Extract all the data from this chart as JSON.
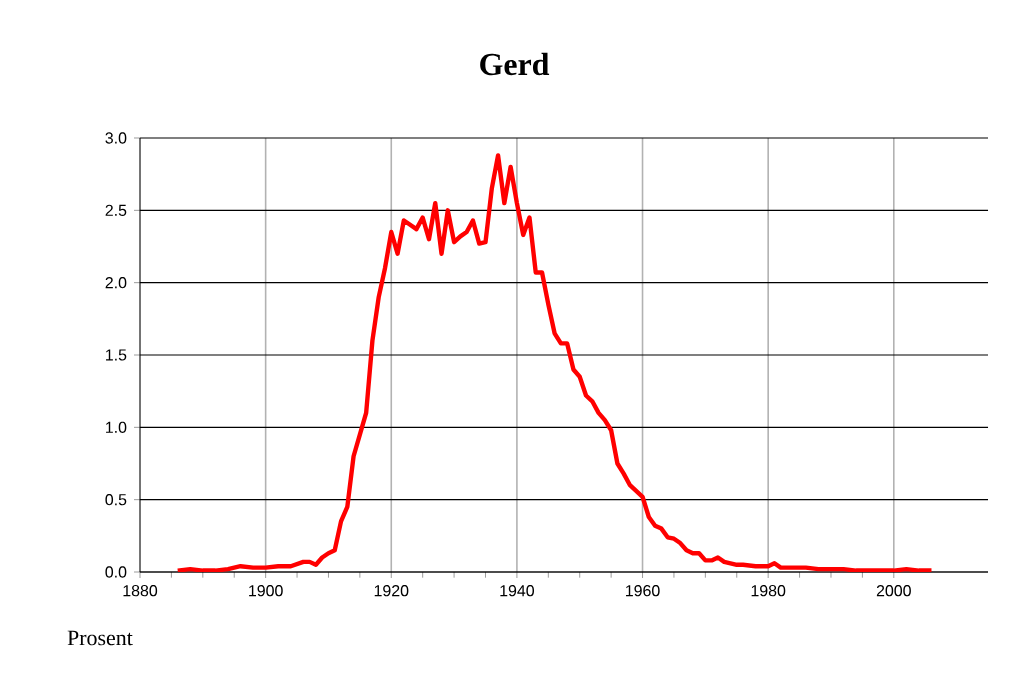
{
  "chart_data": {
    "type": "line",
    "title": "Gerd",
    "ylabel": "Prosent",
    "x": [
      1886,
      1888,
      1890,
      1892,
      1894,
      1896,
      1898,
      1900,
      1902,
      1904,
      1906,
      1907,
      1908,
      1909,
      1910,
      1911,
      1912,
      1913,
      1914,
      1915,
      1916,
      1917,
      1918,
      1919,
      1920,
      1921,
      1922,
      1923,
      1924,
      1925,
      1926,
      1927,
      1928,
      1929,
      1930,
      1931,
      1932,
      1933,
      1934,
      1935,
      1936,
      1937,
      1938,
      1939,
      1940,
      1941,
      1942,
      1943,
      1944,
      1945,
      1946,
      1947,
      1948,
      1949,
      1950,
      1951,
      1952,
      1953,
      1954,
      1955,
      1956,
      1957,
      1958,
      1959,
      1960,
      1961,
      1962,
      1963,
      1964,
      1965,
      1966,
      1967,
      1968,
      1969,
      1970,
      1971,
      1972,
      1973,
      1974,
      1975,
      1976,
      1978,
      1980,
      1981,
      1982,
      1984,
      1986,
      1988,
      1990,
      1992,
      1994,
      1996,
      1998,
      2000,
      2002,
      2004,
      2006
    ],
    "series": [
      {
        "color": "#ff0000",
        "values": [
          0.01,
          0.02,
          0.01,
          0.01,
          0.02,
          0.04,
          0.03,
          0.03,
          0.04,
          0.04,
          0.07,
          0.07,
          0.05,
          0.1,
          0.13,
          0.15,
          0.35,
          0.45,
          0.8,
          0.95,
          1.1,
          1.6,
          1.9,
          2.1,
          2.35,
          2.2,
          2.43,
          2.4,
          2.37,
          2.45,
          2.3,
          2.55,
          2.2,
          2.5,
          2.28,
          2.32,
          2.35,
          2.43,
          2.27,
          2.28,
          2.65,
          2.88,
          2.55,
          2.8,
          2.55,
          2.33,
          2.45,
          2.07,
          2.07,
          1.85,
          1.65,
          1.58,
          1.58,
          1.4,
          1.35,
          1.22,
          1.18,
          1.1,
          1.05,
          0.98,
          0.75,
          0.68,
          0.6,
          0.56,
          0.52,
          0.38,
          0.32,
          0.3,
          0.24,
          0.23,
          0.2,
          0.15,
          0.13,
          0.13,
          0.08,
          0.08,
          0.1,
          0.07,
          0.06,
          0.05,
          0.05,
          0.04,
          0.04,
          0.06,
          0.03,
          0.03,
          0.03,
          0.02,
          0.02,
          0.02,
          0.01,
          0.01,
          0.01,
          0.01,
          0.02,
          0.01,
          0.01
        ]
      }
    ],
    "xlim": [
      1880,
      2015
    ],
    "ylim": [
      0,
      3
    ],
    "xticks": [
      1880,
      1900,
      1920,
      1940,
      1960,
      1980,
      2000
    ],
    "yticks": [
      {
        "value": 0,
        "label": "0.0"
      },
      {
        "value": 0.5,
        "label": "0.5"
      },
      {
        "value": 1,
        "label": "1.0"
      },
      {
        "value": 1.5,
        "label": "1.5"
      },
      {
        "value": 2,
        "label": "2.0"
      },
      {
        "value": 2.5,
        "label": "2.5"
      },
      {
        "value": 3,
        "label": "3.0"
      }
    ],
    "grid": true,
    "marker": "none",
    "line_style": "solid"
  }
}
